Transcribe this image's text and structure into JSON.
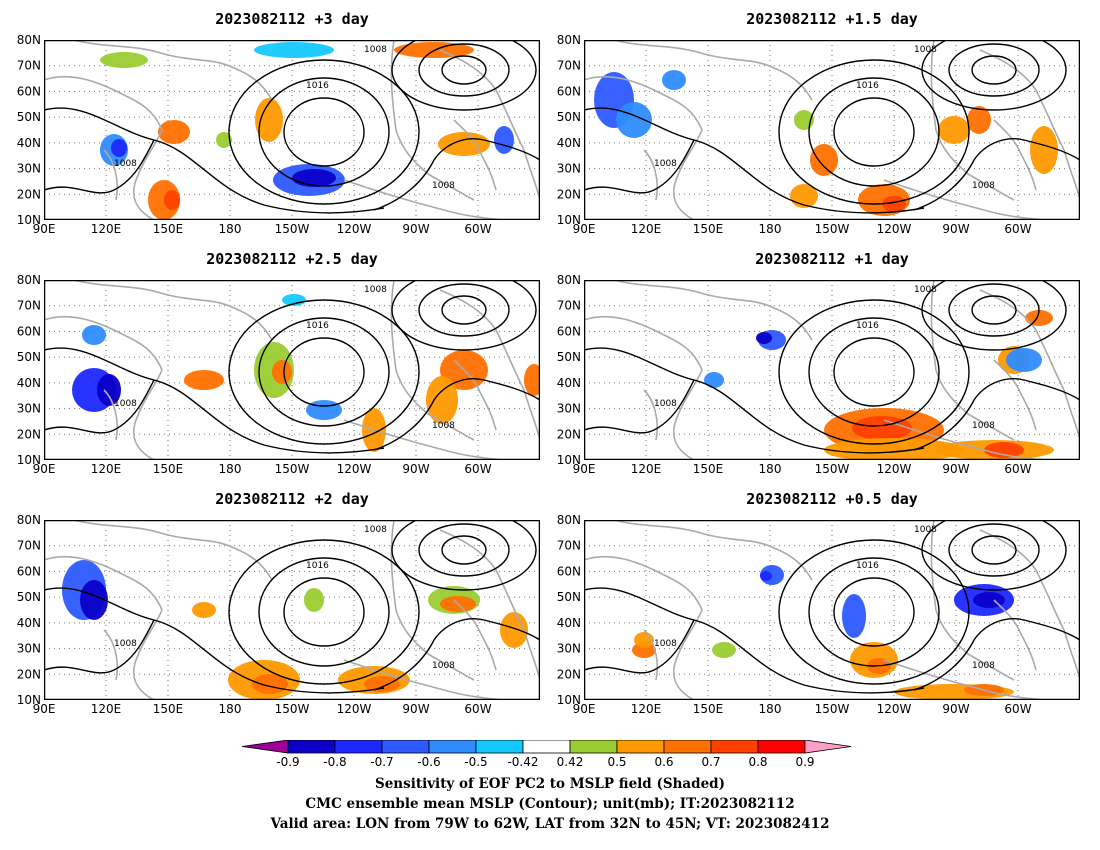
{
  "panels": [
    {
      "title": "2023082112 +3 day"
    },
    {
      "title": "2023082112 +1.5 day"
    },
    {
      "title": "2023082112 +2.5 day"
    },
    {
      "title": "2023082112 +1 day"
    },
    {
      "title": "2023082112 +2 day"
    },
    {
      "title": "2023082112 +0.5 day"
    }
  ],
  "lat_ticks": [
    "80N",
    "70N",
    "60N",
    "50N",
    "40N",
    "30N",
    "20N",
    "10N"
  ],
  "lon_ticks": [
    "90E",
    "120E",
    "150E",
    "180",
    "150W",
    "120W",
    "90W",
    "60W"
  ],
  "contour_labels": {
    "low": "1008",
    "high": "1016"
  },
  "colorbar": {
    "labels": [
      "-0.9",
      "-0.8",
      "-0.7",
      "-0.6",
      "-0.5",
      "-0.42",
      "0.42",
      "0.5",
      "0.6",
      "0.7",
      "0.8",
      "0.9"
    ],
    "colors": [
      "#a0009a",
      "#0a00c8",
      "#1e28ff",
      "#2c5aff",
      "#2e8cff",
      "#14c8ff",
      "#ffffff",
      "#9acd32",
      "#ff9900",
      "#ff7000",
      "#ff4000",
      "#ff0000",
      "#ff9ec8"
    ]
  },
  "captions": {
    "line1": "Sensitivity of EOF PC2 to MSLP field (Shaded)",
    "line2": "CMC ensemble mean MSLP (Contour); unit(mb); IT:2023082112",
    "line3": "Valid area: LON from 79W to 62W, LAT from 32N to 45N; VT: 2023082412"
  }
}
